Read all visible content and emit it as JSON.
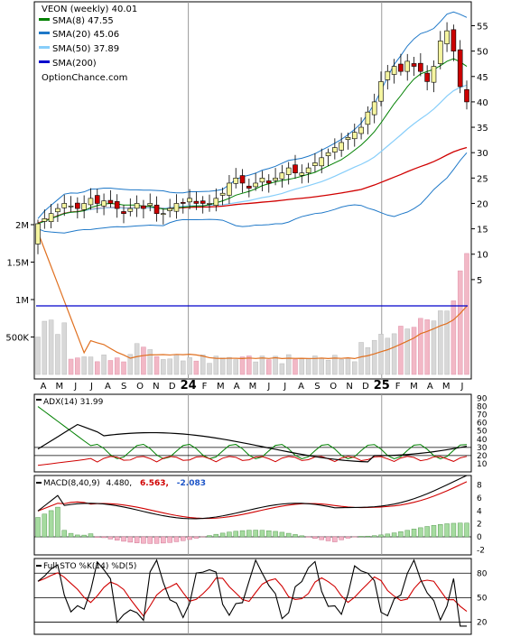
{
  "chart_data": [
    {
      "panel": "price",
      "type": "candlestick",
      "interval": "weekly",
      "symbol_label": "VEON (weekly) 40.01",
      "legend": [
        {
          "label": "SMA(8) 47.55",
          "color": "#008000"
        },
        {
          "label": "SMA(20) 45.06",
          "color": "#1e78c8"
        },
        {
          "label": "SMA(50) 37.89",
          "color": "#87cefa"
        },
        {
          "label": "SMA(200)",
          "color": "#0000cc"
        }
      ],
      "watermark": "OptionChance.com",
      "ylim": [
        0,
        59
      ],
      "y_ticks": [
        5,
        10,
        15,
        20,
        25,
        30,
        35,
        40,
        45,
        50,
        55
      ],
      "volume_ticks": [
        "500K",
        "1M",
        "1.5M",
        "2M"
      ],
      "x_ticks": [
        "A",
        "M",
        "J",
        "J",
        "A",
        "S",
        "O",
        "N",
        "D",
        "24",
        "F",
        "M",
        "A",
        "M",
        "J",
        "J",
        "A",
        "S",
        "O",
        "N",
        "D",
        "25",
        "F",
        "M",
        "A",
        "M",
        "J"
      ],
      "close": [
        16,
        17,
        18,
        19,
        20,
        19.5,
        19,
        20,
        21,
        20,
        20.5,
        20,
        19,
        18,
        19,
        20,
        19,
        20,
        18,
        18,
        19,
        20,
        20,
        21,
        20,
        20,
        20,
        21,
        22,
        24,
        25,
        24,
        23,
        24,
        25,
        24,
        25,
        26,
        27,
        26,
        26,
        27,
        28,
        29,
        30,
        31,
        32,
        33,
        34,
        35,
        38,
        40,
        44,
        46,
        47,
        46,
        48,
        47,
        46,
        44,
        47,
        52,
        54,
        50,
        43,
        40
      ]
    },
    {
      "panel": "adx",
      "type": "line",
      "label": "ADX(14) 31.99",
      "ylim": [
        0,
        95
      ],
      "y_ticks": [
        10,
        20,
        30,
        40,
        50,
        60,
        70,
        80,
        90
      ]
    },
    {
      "panel": "macd",
      "type": "line",
      "label_prefix": "MACD(8,40,9)",
      "label_value": "4.480,",
      "signal_value": "6.563,",
      "hist_value": "-2.083",
      "ylim": [
        -2.8,
        9.5
      ],
      "y_ticks": [
        -2,
        0,
        2,
        4,
        6,
        8
      ]
    },
    {
      "panel": "stochastic",
      "type": "line",
      "label": "Full STO %K(14) %D(5)",
      "ylim": [
        5,
        98
      ],
      "y_ticks": [
        20,
        50,
        80
      ]
    }
  ],
  "colors": {
    "up_candle": "#f5f5a0",
    "down_candle": "#cc0000",
    "sma8": "#008000",
    "sma20": "#1e78c8",
    "sma50": "#87cefa",
    "sma200": "#0000cc",
    "red_line": "#d00000",
    "volume_up": "#d8d8d8",
    "volume_down": "#f2b8c6",
    "volume_avg": "#e07020",
    "hist_up": "#a6dba0",
    "hist_down": "#f4b6c8"
  }
}
